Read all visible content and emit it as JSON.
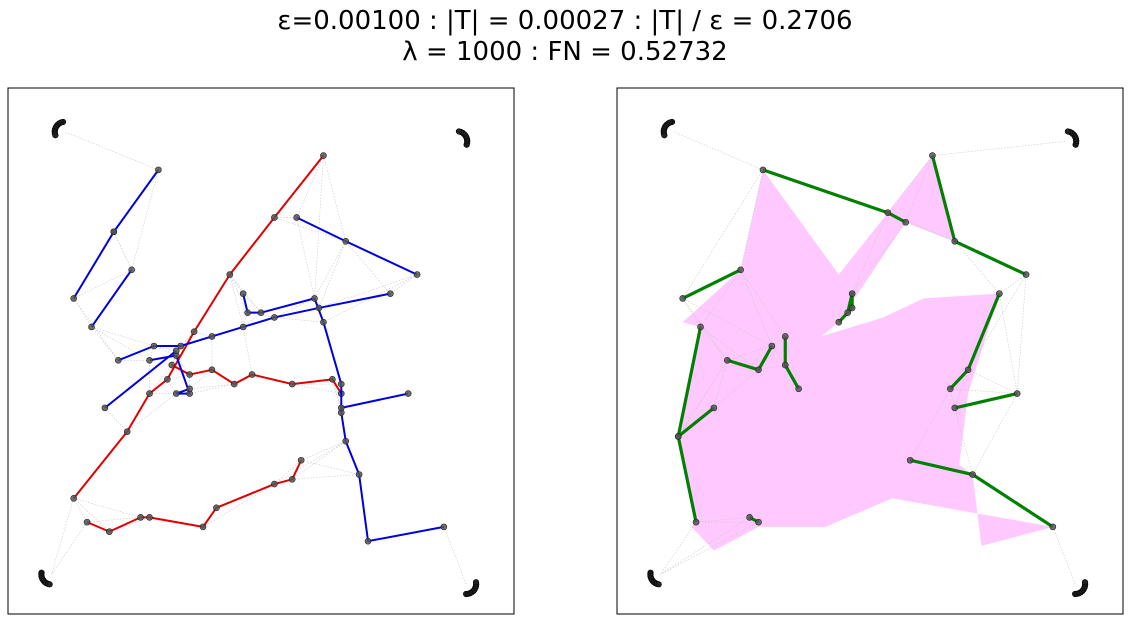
{
  "title": {
    "line1": "ε=0.00100 : |T| = 0.00027 : |T| / ε = 0.2706",
    "line2": "λ = 1000 : FN = 0.52732"
  },
  "chart_data": [
    {
      "type": "scatter",
      "name": "left panel",
      "xlim": [
        0,
        1
      ],
      "ylim": [
        0,
        1
      ],
      "grid": false,
      "series": [
        {
          "color": "#e00000",
          "points": [
            [
              0.64,
              0.9
            ],
            [
              0.53,
              0.77
            ],
            [
              0.43,
              0.65
            ],
            [
              0.35,
              0.53
            ],
            [
              0.29,
              0.43
            ],
            [
              0.25,
              0.4
            ],
            [
              0.2,
              0.32
            ],
            [
              0.08,
              0.18
            ]
          ]
        },
        {
          "color": "#e00000",
          "points": [
            [
              0.3,
              0.46
            ],
            [
              0.34,
              0.44
            ],
            [
              0.39,
              0.45
            ],
            [
              0.44,
              0.42
            ],
            [
              0.48,
              0.44
            ],
            [
              0.57,
              0.42
            ],
            [
              0.66,
              0.43
            ],
            [
              0.68,
              0.4
            ]
          ]
        },
        {
          "color": "#e00000",
          "points": [
            [
              0.11,
              0.13
            ],
            [
              0.16,
              0.11
            ],
            [
              0.23,
              0.14
            ],
            [
              0.25,
              0.14
            ],
            [
              0.37,
              0.12
            ],
            [
              0.4,
              0.16
            ],
            [
              0.53,
              0.21
            ],
            [
              0.57,
              0.22
            ],
            [
              0.59,
              0.26
            ]
          ]
        },
        {
          "color": "#0000dd",
          "points": [
            [
              0.27,
              0.87
            ],
            [
              0.17,
              0.74
            ]
          ]
        },
        {
          "color": "#0000dd",
          "points": [
            [
              0.17,
              0.74
            ],
            [
              0.08,
              0.6
            ]
          ]
        },
        {
          "color": "#0000dd",
          "points": [
            [
              0.21,
              0.66
            ],
            [
              0.12,
              0.54
            ]
          ]
        },
        {
          "color": "#0000dd",
          "points": [
            [
              0.58,
              0.77
            ],
            [
              0.69,
              0.72
            ],
            [
              0.85,
              0.65
            ]
          ]
        },
        {
          "color": "#0000dd",
          "points": [
            [
              0.46,
              0.61
            ],
            [
              0.47,
              0.57
            ],
            [
              0.5,
              0.57
            ],
            [
              0.62,
              0.6
            ],
            [
              0.64,
              0.55
            ],
            [
              0.68,
              0.42
            ],
            [
              0.68,
              0.36
            ],
            [
              0.69,
              0.3
            ],
            [
              0.72,
              0.23
            ],
            [
              0.74,
              0.09
            ],
            [
              0.91,
              0.12
            ]
          ]
        },
        {
          "color": "#0000dd",
          "points": [
            [
              0.18,
              0.47
            ],
            [
              0.26,
              0.5
            ],
            [
              0.32,
              0.5
            ],
            [
              0.39,
              0.52
            ],
            [
              0.46,
              0.54
            ],
            [
              0.53,
              0.56
            ],
            [
              0.63,
              0.58
            ],
            [
              0.79,
              0.61
            ]
          ]
        },
        {
          "color": "#0000dd",
          "points": [
            [
              0.25,
              0.47
            ],
            [
              0.31,
              0.48
            ],
            [
              0.34,
              0.4
            ],
            [
              0.31,
              0.4
            ],
            [
              0.34,
              0.41
            ]
          ]
        },
        {
          "color": "#0000dd",
          "points": [
            [
              0.31,
              0.49
            ],
            [
              0.15,
              0.37
            ]
          ]
        },
        {
          "color": "#0000dd",
          "points": [
            [
              0.68,
              0.37
            ],
            [
              0.83,
              0.4
            ]
          ]
        }
      ]
    },
    {
      "type": "scatter",
      "name": "right panel",
      "xlim": [
        0,
        1
      ],
      "ylim": [
        0,
        1
      ],
      "grid": false,
      "series": [
        {
          "color": "#008000",
          "points": [
            [
              0.26,
              0.87
            ],
            [
              0.54,
              0.78
            ],
            [
              0.58,
              0.76
            ]
          ]
        },
        {
          "color": "#008000",
          "points": [
            [
              0.64,
              0.9
            ],
            [
              0.69,
              0.72
            ],
            [
              0.85,
              0.65
            ]
          ]
        },
        {
          "color": "#008000",
          "points": [
            [
              0.21,
              0.66
            ],
            [
              0.08,
              0.6
            ]
          ]
        },
        {
          "color": "#008000",
          "points": [
            [
              0.12,
              0.54
            ],
            [
              0.07,
              0.31
            ],
            [
              0.11,
              0.13
            ]
          ]
        },
        {
          "color": "#008000",
          "points": [
            [
              0.07,
              0.31
            ],
            [
              0.15,
              0.37
            ]
          ]
        },
        {
          "color": "#008000",
          "points": [
            [
              0.18,
              0.47
            ],
            [
              0.25,
              0.45
            ],
            [
              0.28,
              0.5
            ]
          ]
        },
        {
          "color": "#008000",
          "points": [
            [
              0.31,
              0.52
            ],
            [
              0.31,
              0.46
            ],
            [
              0.34,
              0.41
            ]
          ]
        },
        {
          "color": "#008000",
          "points": [
            [
              0.43,
              0.55
            ],
            [
              0.46,
              0.58
            ],
            [
              0.46,
              0.61
            ],
            [
              0.45,
              0.57
            ]
          ]
        },
        {
          "color": "#008000",
          "points": [
            [
              0.79,
              0.61
            ],
            [
              0.72,
              0.45
            ],
            [
              0.68,
              0.41
            ]
          ]
        },
        {
          "color": "#008000",
          "points": [
            [
              0.69,
              0.37
            ],
            [
              0.83,
              0.4
            ]
          ]
        },
        {
          "color": "#008000",
          "points": [
            [
              0.59,
              0.26
            ],
            [
              0.73,
              0.23
            ],
            [
              0.91,
              0.12
            ]
          ]
        },
        {
          "color": "#008000",
          "points": [
            [
              0.23,
              0.14
            ],
            [
              0.25,
              0.13
            ]
          ]
        }
      ]
    }
  ]
}
